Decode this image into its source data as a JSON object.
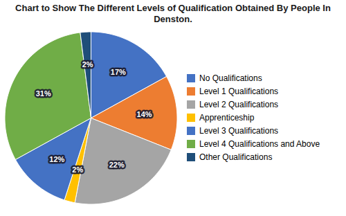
{
  "chart_data": {
    "type": "pie",
    "title": "Chart to Show The Different Levels of Qualification Obtained By People In Denston.",
    "categories": [
      "No Qualifications",
      "Level 1 Qualifications",
      "Level 2 Qualifications",
      "Apprenticeship",
      "Level 3 Qualifications",
      "Level 4 Qualifications and Above",
      "Other Qualifications"
    ],
    "values": [
      17,
      14,
      22,
      2,
      12,
      31,
      2
    ],
    "value_labels": [
      "17%",
      "14%",
      "22%",
      "2%",
      "12%",
      "31%",
      "2%"
    ],
    "colors": [
      "#4472C4",
      "#ED7D31",
      "#A5A5A5",
      "#FFC000",
      "#4472C4",
      "#70AD47",
      "#1F4E79"
    ],
    "data_labels": true,
    "legend": "right"
  }
}
